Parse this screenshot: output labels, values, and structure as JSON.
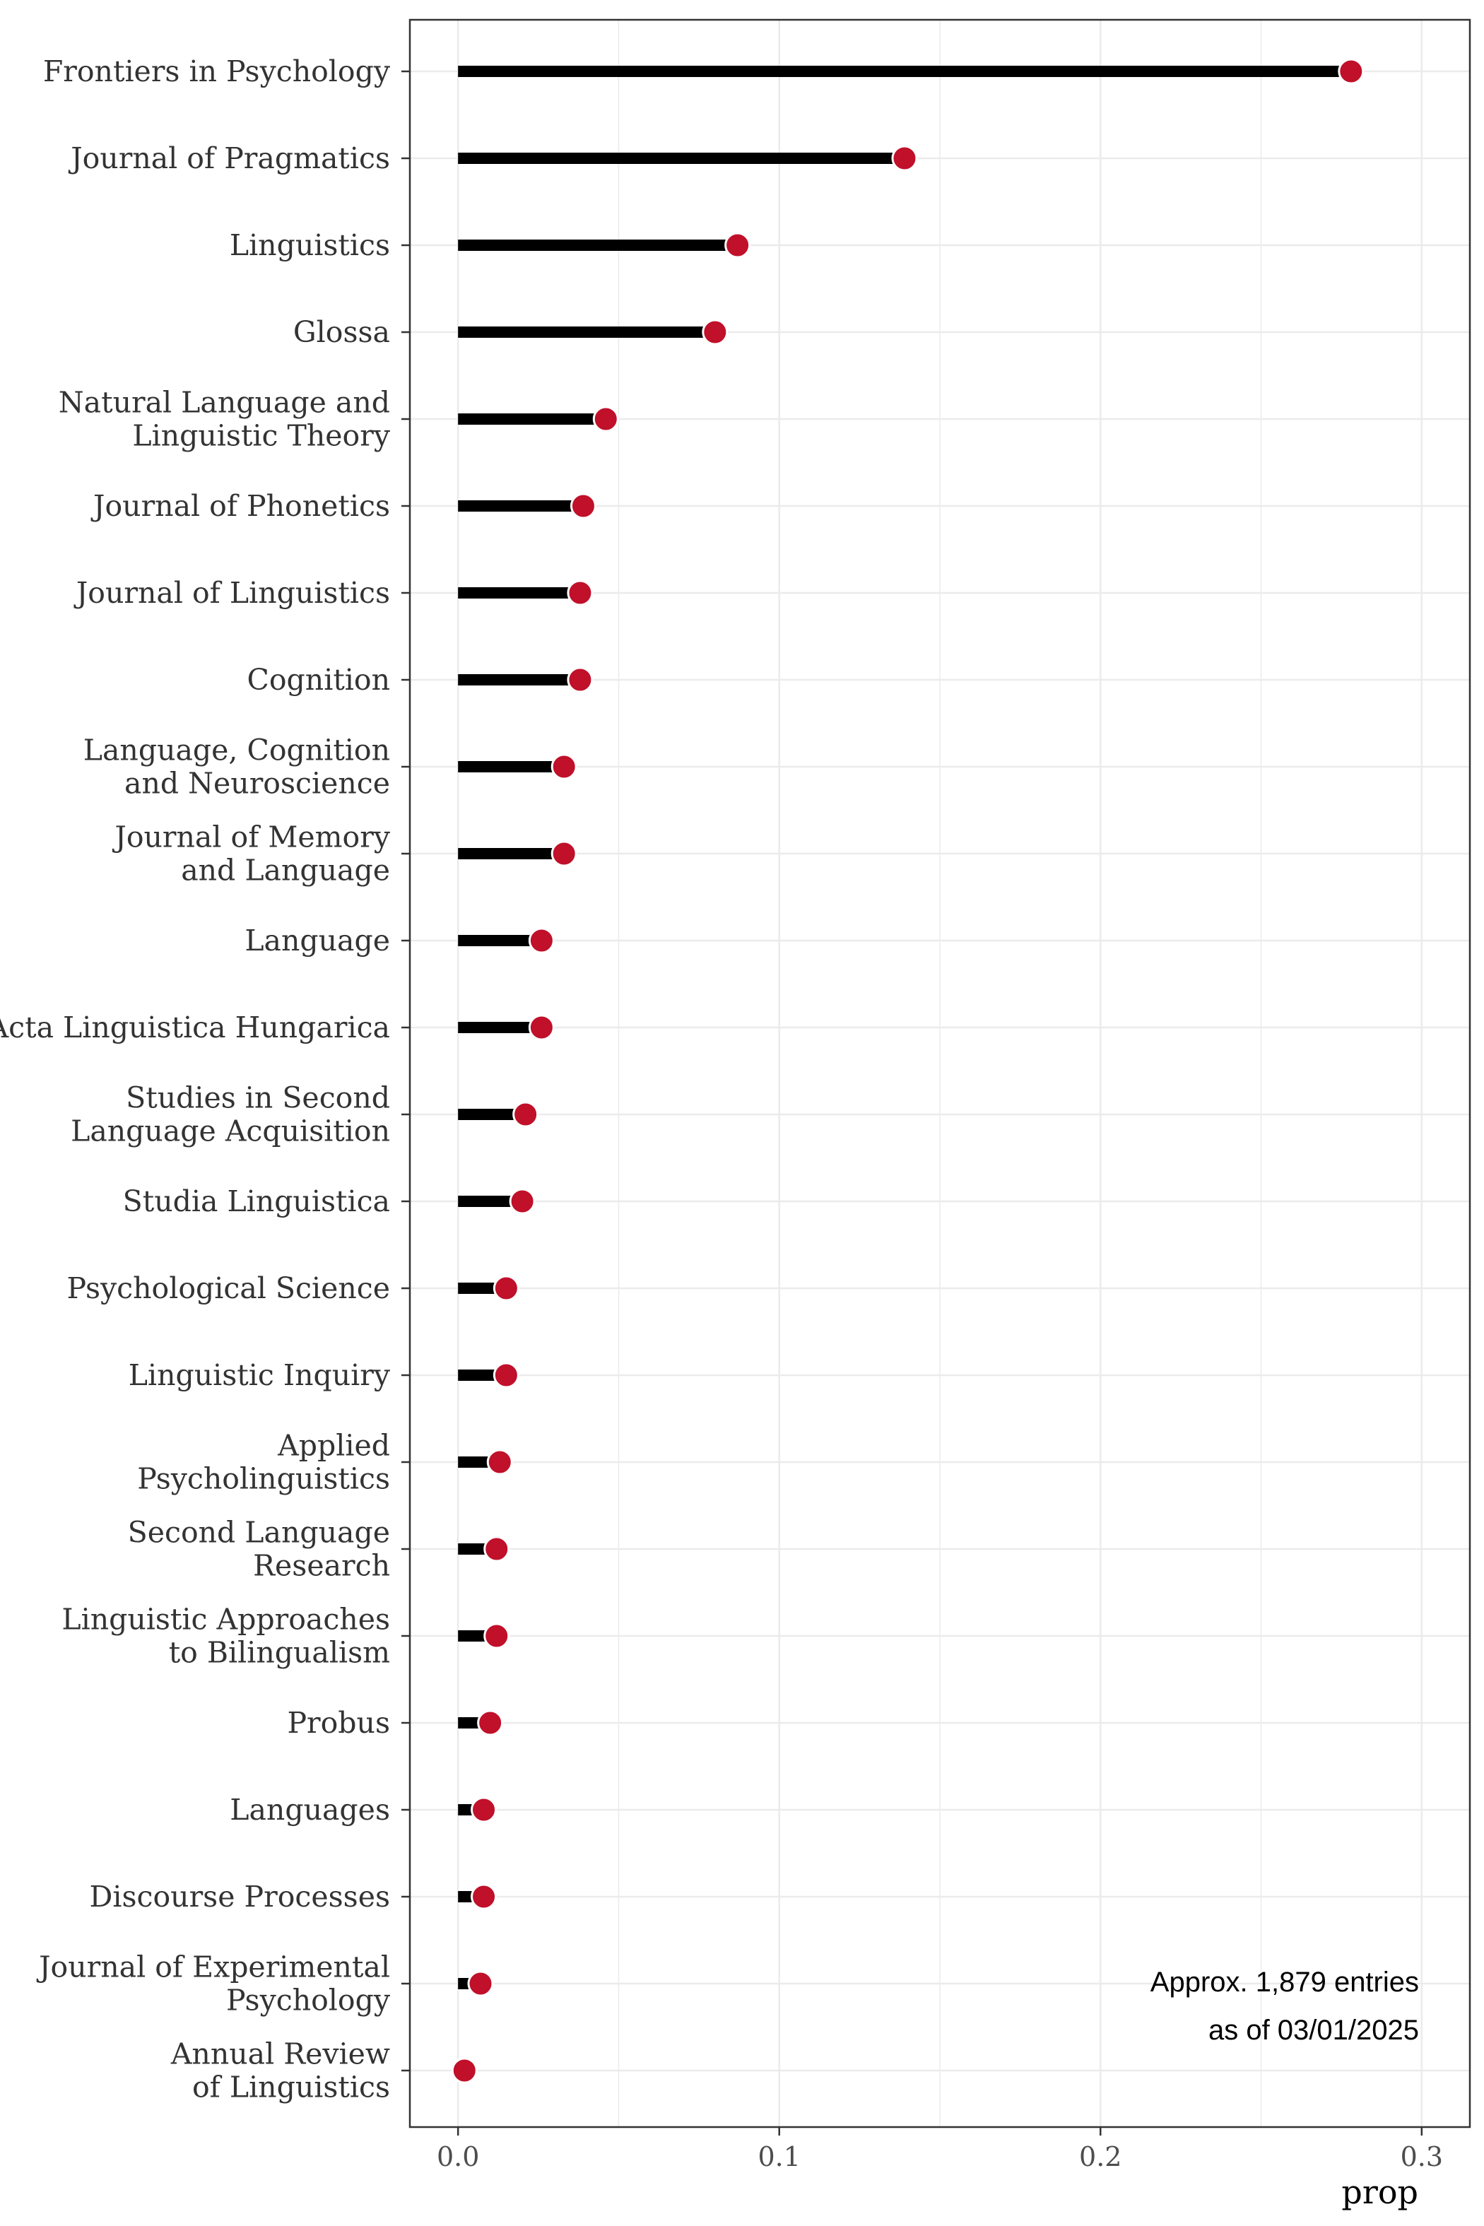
{
  "chart_data": {
    "type": "lollipop",
    "xlabel": "prop",
    "ylabel": "",
    "xlim": [
      -0.015,
      0.315
    ],
    "x_ticks": [
      0.0,
      0.1,
      0.2,
      0.3
    ],
    "x_tick_labels": [
      "0.0",
      "0.1",
      "0.2",
      "0.3"
    ],
    "grid": true,
    "annotation": [
      "Approx. 1,879 entries",
      "as of 03/01/2025"
    ],
    "colors": {
      "point": "#c0102a",
      "stick": "#000000",
      "grid": "#ebebeb",
      "text": "#4d4d4d"
    },
    "categories": [
      "Frontiers in Psychology",
      "Journal of Pragmatics",
      "Linguistics",
      "Glossa",
      "Natural Language and\nLinguistic Theory",
      "Journal of Phonetics",
      "Journal of Linguistics",
      "Cognition",
      "Language, Cognition\nand Neuroscience",
      "Journal of Memory\nand Language",
      "Language",
      "Acta Linguistica Hungarica",
      "Studies in Second\nLanguage Acquisition",
      "Studia Linguistica",
      "Psychological Science",
      "Linguistic Inquiry",
      "Applied\nPsycholinguistics",
      "Second Language\nResearch",
      "Linguistic Approaches\nto Bilingualism",
      "Probus",
      "Languages",
      "Discourse Processes",
      "Journal of Experimental\nPsychology",
      "Annual Review\nof Linguistics"
    ],
    "values": [
      0.278,
      0.139,
      0.087,
      0.08,
      0.046,
      0.039,
      0.038,
      0.038,
      0.033,
      0.033,
      0.026,
      0.026,
      0.021,
      0.02,
      0.015,
      0.015,
      0.013,
      0.012,
      0.012,
      0.01,
      0.008,
      0.008,
      0.007,
      0.002
    ]
  }
}
